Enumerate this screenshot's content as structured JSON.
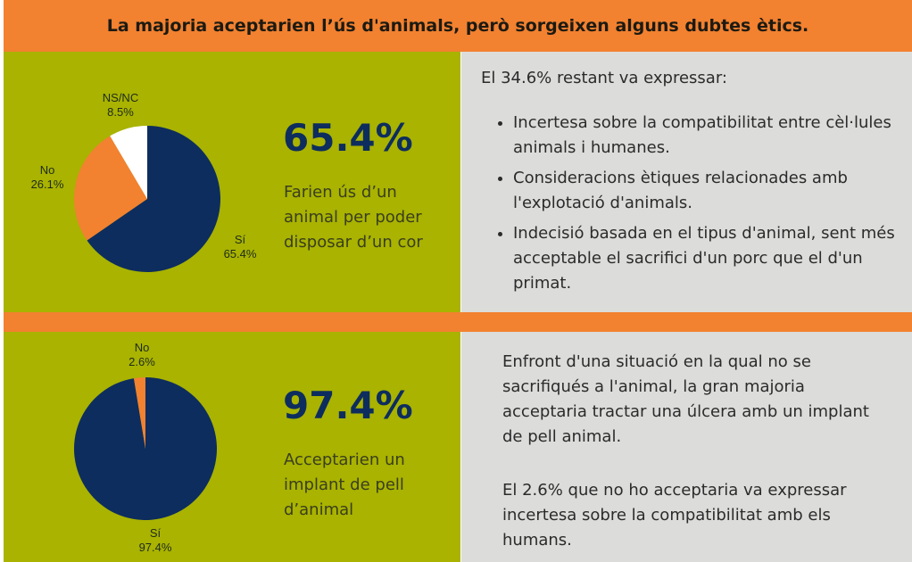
{
  "header": {
    "title": "La majoria aceptarien l’ús d'animals, però sorgeixen alguns dubtes ètics."
  },
  "colors": {
    "green": "#a9b300",
    "orange": "#f28130",
    "navy": "#0d2d5e",
    "white": "#ffffff",
    "gray": "#dcdcda"
  },
  "chart_data": [
    {
      "type": "pie",
      "slices": [
        {
          "label": "Sí",
          "value": 65.4,
          "text": "65.4%",
          "color": "#0d2d5e"
        },
        {
          "label": "No",
          "value": 26.1,
          "text": "26.1%",
          "color": "#f28130"
        },
        {
          "label": "NS/NC",
          "value": 8.5,
          "text": "8.5%",
          "color": "#ffffff"
        }
      ]
    },
    {
      "type": "pie",
      "slices": [
        {
          "label": "Sí",
          "value": 97.4,
          "text": "97.4%",
          "color": "#0d2d5e"
        },
        {
          "label": "No",
          "value": 2.6,
          "text": "2.6%",
          "color": "#f28130"
        }
      ]
    }
  ],
  "section1": {
    "big": "65.4%",
    "desc": "Farien ús d’un animal per poder disposar d’un cor",
    "intro": "El 34.6% restant va expressar:",
    "bullets": [
      "Incertesa sobre la compatibilitat entre cèl·lules animals i humanes.",
      "Consideracions ètiques relacionades amb l'explotació d'animals.",
      "Indecisió basada en el tipus d'animal, sent més acceptable el sacrifici d'un porc que el d'un primat."
    ]
  },
  "section2": {
    "big": "97.4%",
    "desc": "Acceptarien un implant de pell d’animal",
    "para1": "Enfront d'una situació en la qual no se sacrifiqués a l'animal, la gran majoria acceptaria tractar una úlcera amb un implant de pell animal.",
    "para2": "El 2.6% que no ho acceptaria va expressar incertesa sobre la compatibilitat amb els humans."
  }
}
